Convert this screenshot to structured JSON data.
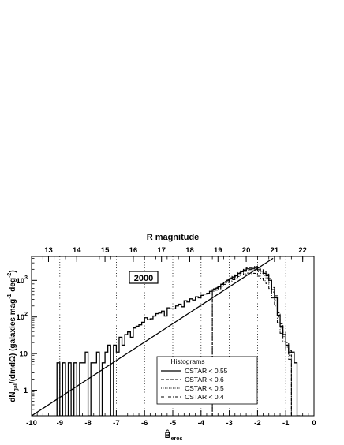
{
  "chart_data": {
    "type": "line",
    "top_axis_title": "R magnitude",
    "top_ticks": [
      "13",
      "14",
      "15",
      "16",
      "17",
      "18",
      "19",
      "20",
      "21",
      "22"
    ],
    "top_tick_values": [
      -9.4,
      -8.4,
      -7.4,
      -6.4,
      -5.4,
      -4.4,
      -3.4,
      -2.4,
      -1.4,
      -0.4
    ],
    "xlabel": "B̂",
    "xlabel_sub": "eros",
    "xlim": [
      -10,
      0
    ],
    "x_ticks": [
      -10,
      -9,
      -8,
      -7,
      -6,
      -5,
      -4,
      -3,
      -2,
      -1,
      0
    ],
    "y_scale": "log",
    "ylim": [
      0.2,
      4500
    ],
    "ylabel_parts": {
      "dn": "dN",
      "gal": "gal",
      "mid": "/(dmdΩ) (galaxies mag",
      "exp1": "-1",
      "deg": " deg",
      "exp2": "-2",
      "end": ")"
    },
    "y_ticks": [
      {
        "value": 1,
        "base": "1",
        "exp": ""
      },
      {
        "value": 10,
        "base": "10",
        "exp": ""
      },
      {
        "value": 100,
        "base": "10",
        "exp": "2"
      },
      {
        "value": 1000,
        "base": "10",
        "exp": "3"
      }
    ],
    "year_label": "2000",
    "vertical_dotted_lines_x": [
      -9,
      -8,
      -7,
      -6,
      -5,
      -4,
      -3,
      -2,
      -1
    ],
    "power_law_fit": {
      "x": [
        -10,
        -1.45
      ],
      "y": [
        0.2,
        4000
      ]
    },
    "legend": {
      "title": "Histograms",
      "position": "bottom-center",
      "entries": [
        "CSTAR < 0.55",
        "CSTAR < 0.6",
        "CSTAR < 0.5",
        "CSTAR < 0.4"
      ]
    },
    "histogram_bin_width": 0.1,
    "series": [
      {
        "name": "CSTAR < 0.55",
        "style": "solid",
        "x": [
          -9.05,
          -8.95,
          -8.85,
          -8.75,
          -8.65,
          -8.55,
          -8.45,
          -8.35,
          -8.25,
          -8.15,
          -8.05,
          -7.95,
          -7.85,
          -7.75,
          -7.65,
          -7.55,
          -7.45,
          -7.35,
          -7.25,
          -7.15,
          -7.05,
          -6.95,
          -6.85,
          -6.75,
          -6.65,
          -6.55,
          -6.45,
          -6.35,
          -6.25,
          -6.15,
          -6.05,
          -5.95,
          -5.85,
          -5.75,
          -5.65,
          -5.55,
          -5.45,
          -5.35,
          -5.25,
          -5.15,
          -5.05,
          -4.95,
          -4.85,
          -4.75,
          -4.65,
          -4.55,
          -4.45,
          -4.35,
          -4.25,
          -4.15,
          -4.05,
          -3.95,
          -3.85,
          -3.75,
          -3.65,
          -3.55,
          -3.45,
          -3.35,
          -3.25,
          -3.15,
          -3.05,
          -2.95,
          -2.85,
          -2.75,
          -2.65,
          -2.55,
          -2.45,
          -2.35,
          -2.25,
          -2.15,
          -2.05,
          -1.95,
          -1.85,
          -1.75,
          -1.65,
          -1.55,
          -1.45,
          -1.35,
          -1.25,
          -1.15,
          -1.05,
          -0.95,
          -0.85,
          -0.75,
          -0.65,
          -0.55
        ],
        "y": [
          5.6,
          0.2,
          5.6,
          0.2,
          5.6,
          0.2,
          5.6,
          0.2,
          5.6,
          5.6,
          11,
          0.2,
          5.6,
          5.6,
          11,
          0.2,
          5.6,
          11,
          17,
          0.2,
          17,
          11,
          28,
          17,
          33,
          39,
          28,
          50,
          56,
          61,
          72,
          95,
          84,
          89,
          106,
          123,
          128,
          145,
          106,
          178,
          167,
          167,
          200,
          223,
          190,
          278,
          256,
          312,
          290,
          356,
          334,
          390,
          423,
          446,
          501,
          557,
          612,
          668,
          780,
          891,
          1003,
          1114,
          1226,
          1337,
          1560,
          1727,
          1895,
          2062,
          2006,
          2117,
          2229,
          1950,
          1783,
          1560,
          1337,
          1003,
          557,
          334,
          111,
          56,
          33,
          17,
          11,
          11,
          5.6,
          0.2
        ]
      },
      {
        "name": "CSTAR < 0.6",
        "style": "dashed",
        "x": [
          -3.55,
          -3.45,
          -3.35,
          -3.25,
          -3.15,
          -3.05,
          -2.95,
          -2.85,
          -2.75,
          -2.65,
          -2.55,
          -2.45,
          -2.35,
          -2.25,
          -2.15,
          -2.05,
          -1.95,
          -1.85,
          -1.75,
          -1.65,
          -1.55,
          -1.45,
          -1.35,
          -1.25,
          -1.15,
          -1.05,
          -0.95,
          -0.85
        ],
        "y": [
          590,
          640,
          700,
          810,
          930,
          1050,
          1170,
          1290,
          1420,
          1640,
          1820,
          2000,
          2180,
          2160,
          2300,
          2420,
          2120,
          1950,
          1720,
          1480,
          1120,
          640,
          380,
          130,
          65,
          38,
          20,
          12
        ]
      },
      {
        "name": "CSTAR < 0.5",
        "style": "dotted",
        "x": [
          -3.55,
          -3.45,
          -3.35,
          -3.25,
          -3.15,
          -3.05,
          -2.95,
          -2.85,
          -2.75,
          -2.65,
          -2.55,
          -2.45,
          -2.35,
          -2.25,
          -2.15,
          -2.05,
          -1.95,
          -1.85,
          -1.75,
          -1.65,
          -1.55,
          -1.45,
          -1.35,
          -1.25,
          -1.15,
          -1.05,
          -0.95,
          -0.85
        ],
        "y": [
          530,
          580,
          630,
          740,
          850,
          950,
          1060,
          1160,
          1250,
          1450,
          1600,
          1750,
          1900,
          1850,
          1950,
          2000,
          1720,
          1570,
          1370,
          1170,
          870,
          480,
          290,
          100,
          50,
          29,
          15,
          9
        ]
      },
      {
        "name": "CSTAR < 0.4",
        "style": "dashdot",
        "x": [
          -3.55,
          -3.45,
          -3.35,
          -3.25,
          -3.15,
          -3.05,
          -2.95,
          -2.85,
          -2.75,
          -2.65,
          -2.55,
          -2.45,
          -2.35,
          -2.25,
          -2.15,
          -2.05,
          -1.95,
          -1.85,
          -1.75,
          -1.65,
          -1.55,
          -1.45,
          -1.35,
          -1.25,
          -1.15,
          -1.05,
          -0.95,
          -0.85
        ],
        "y": [
          500,
          540,
          590,
          690,
          780,
          870,
          960,
          1040,
          1110,
          1280,
          1400,
          1500,
          1580,
          1520,
          1560,
          1550,
          1300,
          1150,
          980,
          820,
          600,
          330,
          200,
          70,
          36,
          21,
          11,
          7
        ]
      }
    ]
  }
}
